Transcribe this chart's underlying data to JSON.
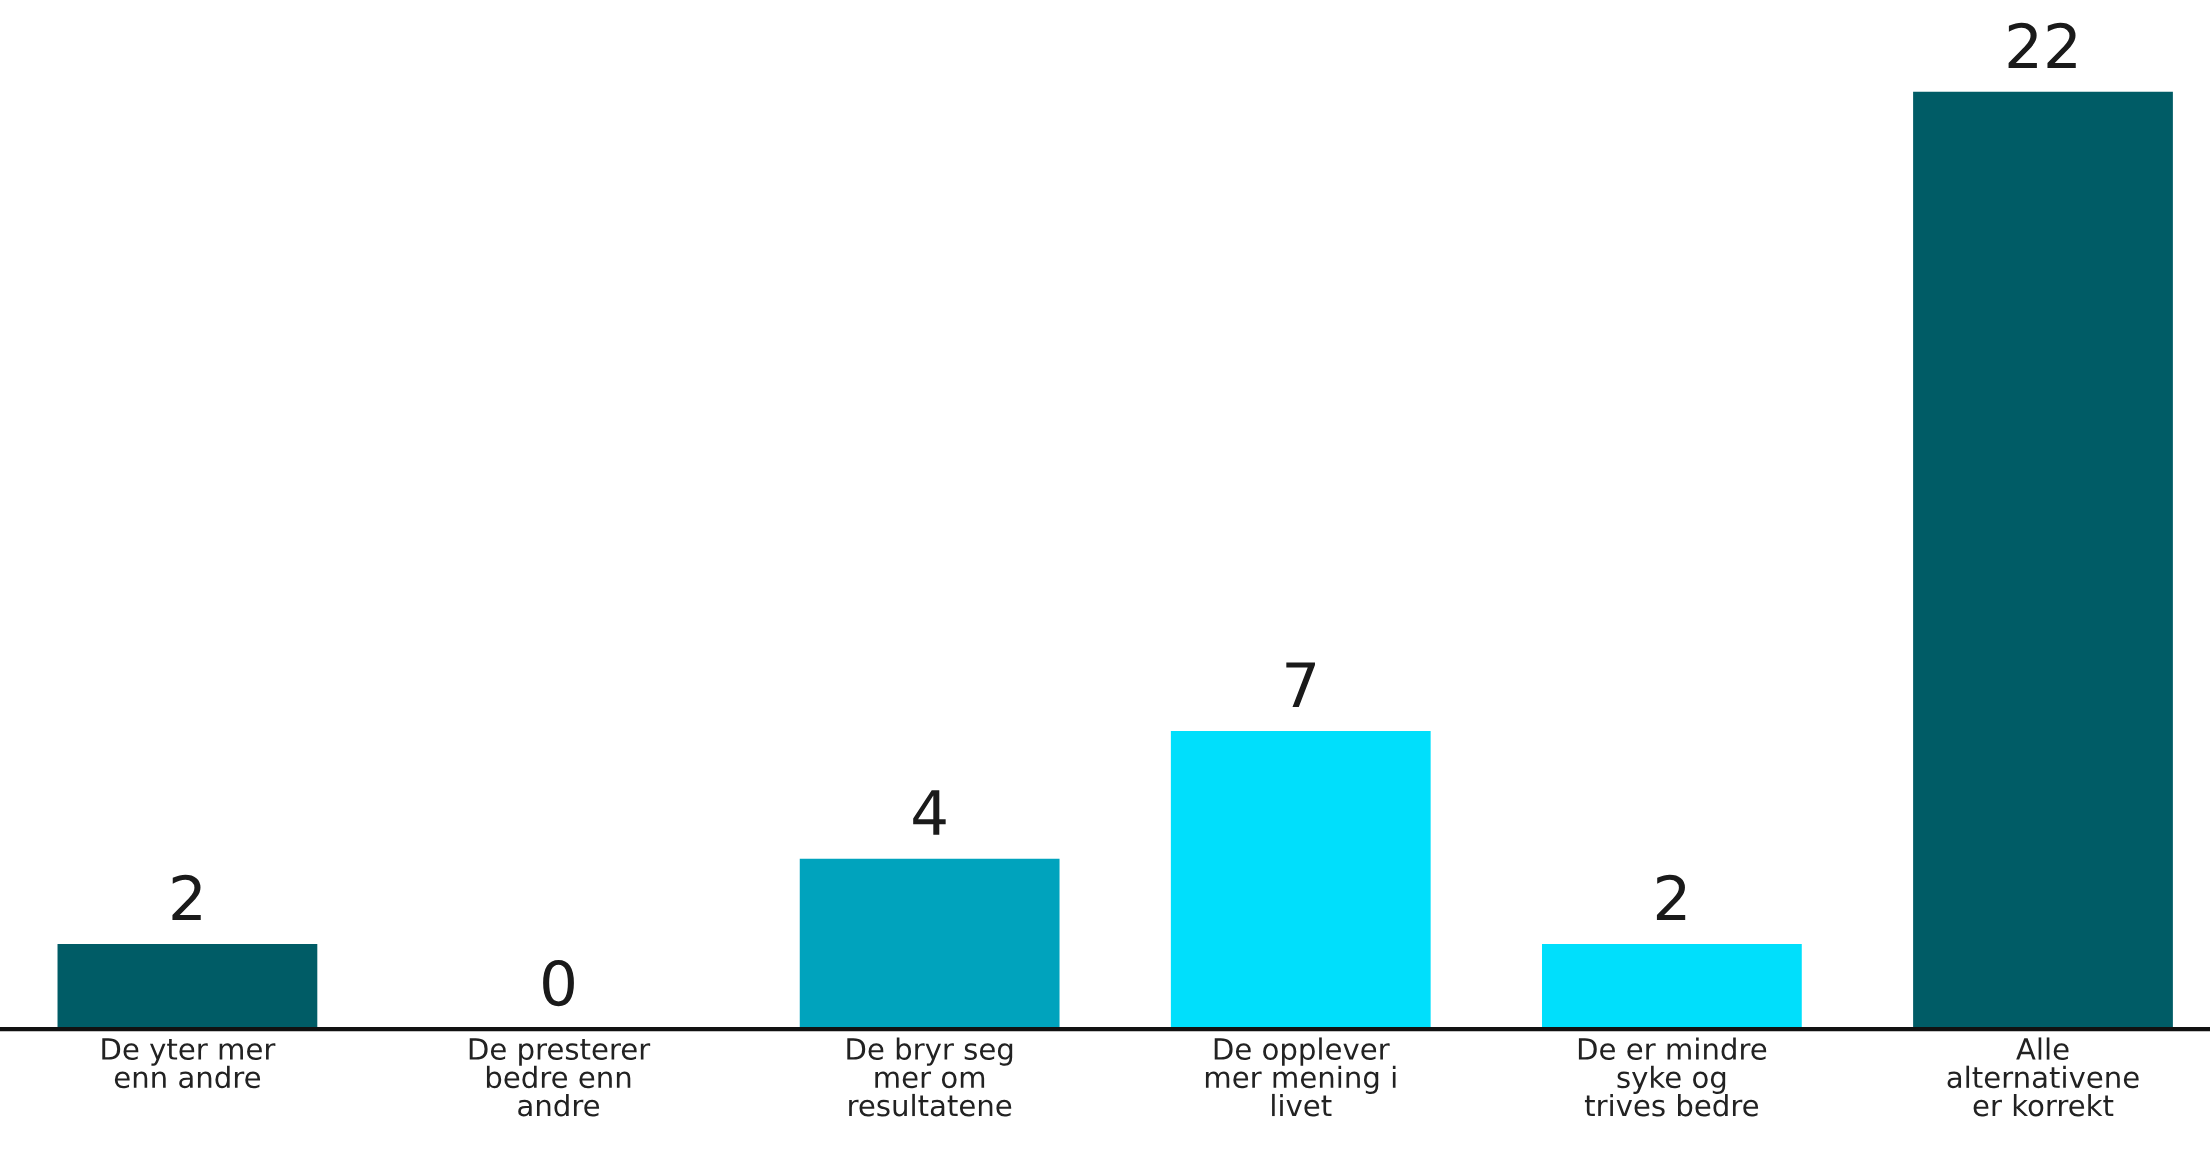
{
  "chart_data": {
    "type": "bar",
    "categories": [
      "De yter mer enn andre",
      "De presterer bedre enn andre",
      "De bryr seg mer om resultatene",
      "De opplever mer mening i livet",
      "De er mindre syke og trives bedre",
      "Alle alternativene er korrekt"
    ],
    "values": [
      2,
      0,
      4,
      7,
      2,
      22
    ],
    "colors": [
      "#005c66",
      "#005c66",
      "#00a3bd",
      "#00dffc",
      "#00dffc",
      "#005c66"
    ],
    "data_labels": true,
    "grid": false,
    "legend": false
  }
}
